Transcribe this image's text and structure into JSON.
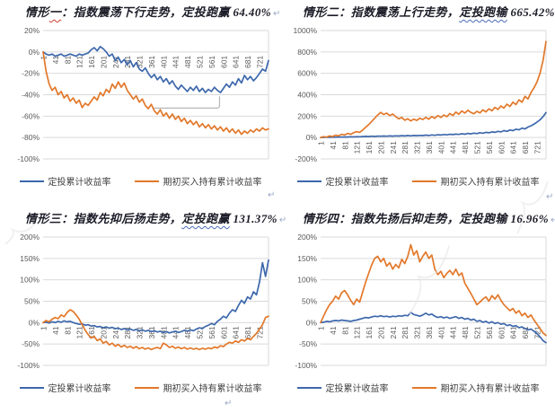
{
  "page": {
    "background": "#ffffff"
  },
  "colors": {
    "dca_line": "#3d68ac",
    "hold_line": "#e2782a",
    "grid": "#d9d9d9",
    "tick_text": "#595959",
    "title_text": "#1c1c28",
    "callout_border": "#b7b7b7",
    "return_mark": "#9aa8c4",
    "watermark": "#e4e4e4"
  },
  "legend": {
    "dca": "定投累计收益率",
    "hold": "期初买入持有累计收益率"
  },
  "marks": {
    "return_mark": "↵"
  },
  "panels": [
    {
      "name": "scenario-1",
      "title": [
        {
          "t": "情形"
        },
        {
          "t": "一",
          "u": "red"
        },
        {
          "t": "：指数震荡下行走势，定投跑赢 64.40%"
        }
      ]
    },
    {
      "name": "scenario-2",
      "title": [
        {
          "t": "情形二：指数震荡上行走势，"
        },
        {
          "t": "定投跑输",
          "u": "blue"
        },
        {
          "t": " 665.42%"
        }
      ]
    },
    {
      "name": "scenario-3",
      "title": [
        {
          "t": "情形三：指数先抑后扬走势，"
        },
        {
          "t": "定投跑赢",
          "u": "blue"
        },
        {
          "t": " 131.37%"
        }
      ]
    },
    {
      "name": "scenario-4",
      "title": [
        {
          "t": "情形四：指数先扬后抑走势，定投跑输 16.96%"
        }
      ]
    }
  ],
  "chart_data": [
    {
      "type": "line",
      "title": "情形一：指数震荡下行走势，定投跑赢 64.40%",
      "x_start": 1,
      "x_step": 10,
      "x_end": 751,
      "x_ticks": [
        1,
        41,
        81,
        121,
        161,
        201,
        241,
        281,
        321,
        361,
        401,
        441,
        481,
        521,
        561,
        601,
        641,
        681,
        721
      ],
      "ylim": [
        -100,
        20
      ],
      "y_ticks": [
        20,
        0,
        -20,
        -40,
        -60,
        -80,
        -100
      ],
      "grid": true,
      "legend_position": "bottom",
      "callout": {
        "x": [
          368,
          588
        ],
        "y": [
          -41.5,
          -52.5
        ]
      },
      "series": [
        {
          "name": "定投累计收益率",
          "color_key": "dca_line",
          "values": [
            0,
            -2,
            -3,
            -2,
            -4,
            -3,
            -2,
            -4,
            -3,
            -2,
            -3,
            -4,
            -2,
            -3,
            -2,
            -1,
            2,
            4,
            1,
            5,
            3,
            0,
            -4,
            -2,
            -8,
            -5,
            -10,
            -7,
            -12,
            -8,
            -14,
            -10,
            -16,
            -18,
            -15,
            -20,
            -24,
            -21,
            -26,
            -23,
            -28,
            -25,
            -30,
            -27,
            -32,
            -35,
            -31,
            -34,
            -37,
            -33,
            -36,
            -32,
            -37,
            -34,
            -38,
            -35,
            -37,
            -33,
            -36,
            -38,
            -34,
            -30,
            -33,
            -28,
            -31,
            -25,
            -29,
            -22,
            -26,
            -23,
            -27,
            -24,
            -20,
            -16,
            -18,
            -8
          ]
        },
        {
          "name": "期初买入持有累计收益率",
          "color_key": "hold_line",
          "values": [
            0,
            -18,
            -30,
            -36,
            -33,
            -40,
            -37,
            -43,
            -40,
            -46,
            -43,
            -48,
            -45,
            -52,
            -48,
            -50,
            -46,
            -42,
            -45,
            -38,
            -41,
            -35,
            -38,
            -30,
            -34,
            -28,
            -33,
            -29,
            -36,
            -40,
            -44,
            -41,
            -47,
            -44,
            -50,
            -53,
            -49,
            -55,
            -58,
            -54,
            -60,
            -57,
            -62,
            -58,
            -63,
            -60,
            -65,
            -62,
            -67,
            -64,
            -68,
            -65,
            -70,
            -67,
            -71,
            -68,
            -72,
            -69,
            -73,
            -70,
            -74,
            -71,
            -75,
            -72,
            -76,
            -73,
            -77,
            -74,
            -76,
            -73,
            -75,
            -72,
            -74,
            -71,
            -73,
            -72
          ]
        }
      ]
    },
    {
      "type": "line",
      "title": "情形二：指数震荡上行走势，定投跑输 665.42%",
      "x_start": 1,
      "x_step": 10,
      "x_end": 751,
      "x_ticks": [
        1,
        41,
        81,
        121,
        161,
        201,
        241,
        281,
        321,
        361,
        401,
        441,
        481,
        521,
        561,
        601,
        641,
        681,
        721
      ],
      "ylim": [
        -200,
        1000
      ],
      "y_ticks": [
        1000,
        800,
        600,
        400,
        200,
        0,
        -200
      ],
      "grid": true,
      "legend_position": "bottom",
      "series": [
        {
          "name": "定投累计收益率",
          "color_key": "dca_line",
          "values": [
            0,
            1,
            3,
            2,
            4,
            3,
            5,
            4,
            6,
            5,
            7,
            6,
            8,
            7,
            9,
            11,
            9,
            12,
            10,
            13,
            12,
            14,
            12,
            15,
            13,
            16,
            14,
            17,
            15,
            18,
            16,
            19,
            17,
            20,
            18,
            22,
            19,
            24,
            21,
            26,
            23,
            28,
            25,
            30,
            27,
            32,
            29,
            35,
            31,
            38,
            34,
            41,
            37,
            45,
            40,
            48,
            44,
            53,
            48,
            58,
            53,
            64,
            58,
            70,
            64,
            78,
            72,
            88,
            80,
            98,
            110,
            125,
            145,
            165,
            195,
            233
          ]
        },
        {
          "name": "期初买入持有累计收益率",
          "color_key": "hold_line",
          "values": [
            0,
            8,
            4,
            15,
            10,
            22,
            16,
            30,
            24,
            38,
            30,
            45,
            55,
            48,
            70,
            95,
            120,
            150,
            180,
            210,
            235,
            215,
            228,
            205,
            220,
            195,
            175,
            188,
            162,
            175,
            155,
            172,
            160,
            180,
            168,
            188,
            172,
            195,
            180,
            205,
            188,
            210,
            195,
            225,
            205,
            238,
            218,
            248,
            228,
            255,
            235,
            222,
            245,
            230,
            258,
            240,
            268,
            250,
            282,
            262,
            295,
            275,
            312,
            290,
            330,
            308,
            352,
            330,
            385,
            360,
            420,
            465,
            520,
            600,
            720,
            898
          ]
        }
      ]
    },
    {
      "type": "line",
      "title": "情形三：指数先抑后扬走势，定投跑赢 131.37%",
      "x_start": 1,
      "x_step": 10,
      "x_end": 751,
      "x_ticks": [
        1,
        41,
        81,
        121,
        161,
        201,
        241,
        281,
        321,
        361,
        401,
        441,
        481,
        521,
        561,
        601,
        641,
        681,
        721
      ],
      "ylim": [
        -100,
        200
      ],
      "y_ticks": [
        200,
        150,
        100,
        50,
        0,
        -50,
        -100
      ],
      "grid": true,
      "legend_position": "bottom",
      "series": [
        {
          "name": "定投累计收益率",
          "color_key": "dca_line",
          "values": [
            0,
            1,
            -1,
            2,
            0,
            3,
            1,
            4,
            2,
            3,
            0,
            -2,
            -4,
            -3,
            -6,
            -5,
            -8,
            -7,
            -10,
            -9,
            -12,
            -10,
            -13,
            -11,
            -14,
            -13,
            -16,
            -14,
            -17,
            -15,
            -18,
            -16,
            -19,
            -17,
            -20,
            -18,
            -21,
            -19,
            -22,
            -20,
            -23,
            -21,
            -24,
            -22,
            -20,
            -23,
            -21,
            -18,
            -20,
            -17,
            -19,
            -15,
            -12,
            -14,
            -9,
            -6,
            -2,
            -5,
            3,
            8,
            15,
            11,
            22,
            30,
            26,
            40,
            52,
            45,
            60,
            55,
            72,
            65,
            95,
            140,
            108,
            146
          ]
        },
        {
          "name": "期初买入持有累计收益率",
          "color_key": "hold_line",
          "values": [
            0,
            5,
            2,
            8,
            12,
            9,
            18,
            14,
            24,
            30,
            26,
            18,
            8,
            -5,
            -18,
            -28,
            -36,
            -32,
            -42,
            -38,
            -48,
            -44,
            -52,
            -48,
            -55,
            -51,
            -57,
            -53,
            -58,
            -55,
            -60,
            -56,
            -61,
            -58,
            -62,
            -59,
            -63,
            -60,
            -58,
            -61,
            -48,
            -52,
            -58,
            -55,
            -60,
            -57,
            -61,
            -58,
            -62,
            -59,
            -62,
            -60,
            -63,
            -60,
            -62,
            -59,
            -61,
            -57,
            -59,
            -54,
            -56,
            -50,
            -46,
            -48,
            -43,
            -46,
            -40,
            -43,
            -37,
            -40,
            -32,
            -25,
            -15,
            -5,
            12,
            15
          ]
        }
      ]
    },
    {
      "type": "line",
      "title": "情形四：指数先扬后抑走势，定投跑输 16.96%",
      "x_start": 1,
      "x_step": 10,
      "x_end": 751,
      "x_ticks": [
        1,
        41,
        81,
        121,
        161,
        201,
        241,
        281,
        321,
        361,
        401,
        441,
        481,
        521,
        561,
        601,
        641,
        681,
        721
      ],
      "ylim": [
        -100,
        200
      ],
      "y_ticks": [
        200,
        150,
        100,
        50,
        0,
        -50,
        -100
      ],
      "grid": true,
      "legend_position": "bottom",
      "series": [
        {
          "name": "定投累计收益率",
          "color_key": "dca_line",
          "values": [
            0,
            1,
            3,
            2,
            4,
            5,
            4,
            6,
            5,
            4,
            3,
            5,
            6,
            8,
            10,
            12,
            11,
            13,
            15,
            14,
            16,
            14,
            15,
            13,
            15,
            14,
            16,
            15,
            17,
            16,
            24,
            19,
            17,
            15,
            18,
            22,
            18,
            20,
            15,
            12,
            14,
            11,
            13,
            10,
            12,
            14,
            10,
            12,
            8,
            10,
            6,
            8,
            3,
            5,
            1,
            3,
            -1,
            2,
            -2,
            0,
            -4,
            -2,
            -7,
            -5,
            -9,
            -7,
            -12,
            -10,
            -14,
            -17,
            -15,
            -20,
            -26,
            -33,
            -42,
            -47
          ]
        },
        {
          "name": "期初买入持有累计收益率",
          "color_key": "hold_line",
          "values": [
            0,
            15,
            30,
            42,
            50,
            62,
            55,
            70,
            75,
            65,
            52,
            42,
            55,
            48,
            72,
            95,
            115,
            135,
            150,
            155,
            142,
            150,
            132,
            140,
            125,
            136,
            128,
            148,
            138,
            155,
            182,
            158,
            168,
            142,
            155,
            165,
            150,
            158,
            125,
            112,
            120,
            105,
            115,
            122,
            112,
            125,
            110,
            116,
            92,
            80,
            68,
            55,
            42,
            48,
            55,
            60,
            50,
            63,
            55,
            65,
            52,
            42,
            35,
            28,
            33,
            22,
            28,
            16,
            22,
            12,
            18,
            6,
            -4,
            -14,
            -24,
            -30
          ]
        }
      ]
    }
  ]
}
